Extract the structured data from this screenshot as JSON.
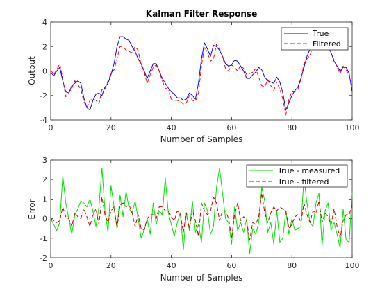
{
  "chart_data": [
    {
      "type": "line",
      "title": "Kalman Filter Response",
      "xlabel": "Number of Samples",
      "ylabel": "Output",
      "xlim": [
        0,
        100
      ],
      "ylim": [
        -4,
        4
      ],
      "xticks": [
        0,
        20,
        40,
        60,
        80,
        100
      ],
      "yticks": [
        -4,
        -2,
        0,
        2,
        4
      ],
      "legend": "top-right",
      "series": [
        {
          "name": "True",
          "color": "#0000ff",
          "dash": "solid",
          "x": [
            0,
            1,
            2,
            3,
            4,
            5,
            6,
            7,
            8,
            9,
            10,
            11,
            12,
            13,
            14,
            15,
            16,
            17,
            18,
            19,
            20,
            21,
            22,
            23,
            24,
            25,
            26,
            27,
            28,
            29,
            30,
            31,
            32,
            33,
            34,
            35,
            36,
            37,
            38,
            39,
            40,
            41,
            42,
            43,
            44,
            45,
            46,
            47,
            48,
            49,
            50,
            51,
            52,
            53,
            54,
            55,
            56,
            57,
            58,
            59,
            60,
            61,
            62,
            63,
            64,
            65,
            66,
            67,
            68,
            69,
            70,
            71,
            72,
            73,
            74,
            75,
            76,
            77,
            78,
            79,
            80,
            81,
            82,
            83,
            84,
            85,
            86,
            87,
            88,
            89,
            90,
            91,
            92,
            93,
            94,
            95,
            96,
            97,
            98,
            99,
            100
          ],
          "y": [
            -0.1,
            -0.4,
            0.0,
            0.3,
            -0.8,
            -1.7,
            -1.8,
            -1.2,
            -1.0,
            -0.8,
            -1.0,
            -2.2,
            -3.0,
            -3.2,
            -2.4,
            -1.9,
            -1.8,
            -2.0,
            -1.3,
            -1.0,
            -0.3,
            0.6,
            2.0,
            2.8,
            2.8,
            2.6,
            2.5,
            2.0,
            1.6,
            1.0,
            0.6,
            0.0,
            -0.6,
            0.0,
            0.6,
            0.6,
            0.0,
            -0.6,
            -1.0,
            -1.4,
            -1.7,
            -1.9,
            -2.2,
            -2.2,
            -2.4,
            -2.3,
            -1.8,
            -2.0,
            -2.3,
            -1.0,
            1.0,
            2.3,
            1.8,
            1.2,
            2.1,
            2.0,
            1.7,
            1.2,
            0.6,
            0.4,
            0.5,
            0.9,
            0.8,
            0.4,
            0.0,
            -0.6,
            -0.6,
            -0.3,
            -0.1,
            0.3,
            0.1,
            -0.5,
            -0.8,
            -0.9,
            -1.0,
            -0.5,
            -0.9,
            -1.8,
            -3.2,
            -2.6,
            -2.0,
            -1.6,
            -1.3,
            -0.6,
            0.3,
            1.2,
            1.8,
            2.2,
            2.6,
            2.6,
            2.6,
            2.6,
            2.0,
            1.5,
            0.8,
            0.4,
            0.0,
            0.3,
            0.3,
            -0.2,
            -1.7
          ]
        },
        {
          "name": "Filtered",
          "color": "#ff0000",
          "dash": "dashed",
          "x": [
            0,
            1,
            2,
            3,
            4,
            5,
            6,
            7,
            8,
            9,
            10,
            11,
            12,
            13,
            14,
            15,
            16,
            17,
            18,
            19,
            20,
            21,
            22,
            23,
            24,
            25,
            26,
            27,
            28,
            29,
            30,
            31,
            32,
            33,
            34,
            35,
            36,
            37,
            38,
            39,
            40,
            41,
            42,
            43,
            44,
            45,
            46,
            47,
            48,
            49,
            50,
            51,
            52,
            53,
            54,
            55,
            56,
            57,
            58,
            59,
            60,
            61,
            62,
            63,
            64,
            65,
            66,
            67,
            68,
            69,
            70,
            71,
            72,
            73,
            74,
            75,
            76,
            77,
            78,
            79,
            80,
            81,
            82,
            83,
            84,
            85,
            86,
            87,
            88,
            89,
            90,
            91,
            92,
            93,
            94,
            95,
            96,
            97,
            98,
            99,
            100
          ],
          "y": [
            0.1,
            -0.3,
            0.1,
            0.6,
            -0.6,
            -2.1,
            -1.8,
            -1.4,
            -0.8,
            -1.1,
            -1.5,
            -2.5,
            -3.0,
            -2.4,
            -2.3,
            -2.4,
            -2.7,
            -1.5,
            -1.5,
            -0.8,
            -0.2,
            0.1,
            1.0,
            2.0,
            2.0,
            1.7,
            1.6,
            1.5,
            2.0,
            1.7,
            0.5,
            -0.1,
            -1.0,
            -0.3,
            0.3,
            0.5,
            0.0,
            -0.8,
            -1.4,
            -1.5,
            -2.3,
            -2.4,
            -2.4,
            -2.5,
            -2.7,
            -2.6,
            -2.0,
            -2.4,
            -2.5,
            -1.8,
            0.4,
            2.0,
            1.5,
            0.8,
            1.0,
            2.2,
            1.8,
            1.2,
            0.2,
            0.0,
            0.5,
            0.3,
            0.0,
            0.5,
            0.2,
            -0.3,
            -0.2,
            -0.1,
            0.2,
            -0.5,
            -1.2,
            -1.3,
            -0.7,
            -1.2,
            -1.6,
            -0.9,
            -1.5,
            -2.3,
            -3.6,
            -2.3,
            -1.7,
            -1.7,
            -1.5,
            -0.7,
            0.6,
            1.0,
            1.3,
            2.0,
            2.3,
            2.1,
            2.8,
            2.5,
            2.4,
            1.5,
            0.9,
            0.3,
            -0.2,
            0.4,
            0.1,
            -0.4,
            -1.3
          ]
        }
      ]
    },
    {
      "type": "line",
      "title": "",
      "xlabel": "Number of Samples",
      "ylabel": "Error",
      "xlim": [
        0,
        100
      ],
      "ylim": [
        -2,
        3
      ],
      "xticks": [
        0,
        20,
        40,
        60,
        80,
        100
      ],
      "yticks": [
        -2,
        -1,
        0,
        1,
        2,
        3
      ],
      "legend": "top-right",
      "series": [
        {
          "name": "True - measured",
          "color": "#00e000",
          "dash": "solid",
          "x": [
            0,
            1,
            2,
            3,
            4,
            5,
            6,
            7,
            8,
            9,
            10,
            11,
            12,
            13,
            14,
            15,
            16,
            17,
            18,
            19,
            20,
            21,
            22,
            23,
            24,
            25,
            26,
            27,
            28,
            29,
            30,
            31,
            32,
            33,
            34,
            35,
            36,
            37,
            38,
            39,
            40,
            41,
            42,
            43,
            44,
            45,
            46,
            47,
            48,
            49,
            50,
            51,
            52,
            53,
            54,
            55,
            56,
            57,
            58,
            59,
            60,
            61,
            62,
            63,
            64,
            65,
            66,
            67,
            68,
            69,
            70,
            71,
            72,
            73,
            74,
            75,
            76,
            77,
            78,
            79,
            80,
            81,
            82,
            83,
            84,
            85,
            86,
            87,
            88,
            89,
            90,
            91,
            92,
            93,
            94,
            95,
            96,
            97,
            98,
            99,
            100
          ],
          "y": [
            0.0,
            -0.3,
            -0.6,
            -0.2,
            2.2,
            0.8,
            0.0,
            -0.8,
            0.2,
            0.5,
            0.9,
            0.8,
            0.6,
            1.0,
            0.4,
            -0.4,
            0.6,
            2.6,
            0.4,
            -0.7,
            1.7,
            0.6,
            -0.5,
            1.2,
            0.1,
            1.4,
            0.5,
            0.3,
            0.9,
            0.0,
            -1.0,
            -0.6,
            0.0,
            -0.8,
            0.8,
            -0.3,
            0.4,
            0.2,
            2.1,
            0.3,
            -0.3,
            -0.9,
            -0.2,
            0.3,
            -1.6,
            0.3,
            -0.6,
            0.9,
            -0.7,
            -0.3,
            -1.2,
            0.8,
            0.4,
            -0.8,
            -0.4,
            1.6,
            2.6,
            1.3,
            0.0,
            -0.2,
            -1.3,
            0.6,
            -0.6,
            -0.2,
            -0.7,
            0.0,
            -1.8,
            -0.5,
            -0.8,
            -0.2,
            1.6,
            0.9,
            -0.7,
            -0.2,
            -1.3,
            0.4,
            -1.2,
            -1.0,
            0.4,
            -0.8,
            0.0,
            -0.6,
            -0.5,
            -0.4,
            2.1,
            0.8,
            -0.2,
            -0.4,
            0.8,
            1.3,
            -1.4,
            0.4,
            0.8,
            -0.6,
            -0.2,
            -0.8,
            -1.5,
            0.5,
            -1.1,
            -1.2,
            1.3
          ]
        },
        {
          "name": "True - filtered",
          "color": "#cc0000",
          "dash": "dashed",
          "x": [
            0,
            1,
            2,
            3,
            4,
            5,
            6,
            7,
            8,
            9,
            10,
            11,
            12,
            13,
            14,
            15,
            16,
            17,
            18,
            19,
            20,
            21,
            22,
            23,
            24,
            25,
            26,
            27,
            28,
            29,
            30,
            31,
            32,
            33,
            34,
            35,
            36,
            37,
            38,
            39,
            40,
            41,
            42,
            43,
            44,
            45,
            46,
            47,
            48,
            49,
            50,
            51,
            52,
            53,
            54,
            55,
            56,
            57,
            58,
            59,
            60,
            61,
            62,
            63,
            64,
            65,
            66,
            67,
            68,
            69,
            70,
            71,
            72,
            73,
            74,
            75,
            76,
            77,
            78,
            79,
            80,
            81,
            82,
            83,
            84,
            85,
            86,
            87,
            88,
            89,
            90,
            91,
            92,
            93,
            94,
            95,
            96,
            97,
            98,
            99,
            100
          ],
          "y": [
            0.0,
            -0.1,
            -0.2,
            -0.1,
            0.6,
            0.1,
            0.0,
            -0.4,
            0.3,
            0.1,
            0.0,
            0.5,
            0.1,
            -0.4,
            0.2,
            0.5,
            -0.3,
            1.1,
            0.2,
            -0.2,
            0.4,
            0.6,
            -0.5,
            0.7,
            0.8,
            0.6,
            0.7,
            0.3,
            -0.4,
            0.2,
            -0.5,
            -0.6,
            0.0,
            0.2,
            0.2,
            0.0,
            0.6,
            0.6,
            0.4,
            0.4,
            0.1,
            -0.1,
            0.4,
            0.2,
            -0.7,
            0.3,
            -0.5,
            0.4,
            -0.1,
            -0.9,
            0.8,
            0.4,
            0.2,
            0.4,
            1.1,
            0.8,
            -0.1,
            0.4,
            0.4,
            0.0,
            -1.0,
            0.2,
            0.8,
            -0.1,
            0.1,
            -0.1,
            -1.1,
            -0.2,
            -0.3,
            0.1,
            1.3,
            0.3,
            -0.2,
            0.3,
            0.6,
            0.4,
            0.6,
            0.5,
            0.4,
            -0.5,
            -0.3,
            0.1,
            0.2,
            -0.2,
            0.8,
            0.2,
            -0.2,
            0.4,
            0.3,
            0.9,
            -0.2,
            0.3,
            0.1,
            -0.3,
            0.5,
            -0.4,
            -1.0,
            -0.1,
            0.2,
            0.2,
            0.7
          ]
        }
      ]
    }
  ]
}
